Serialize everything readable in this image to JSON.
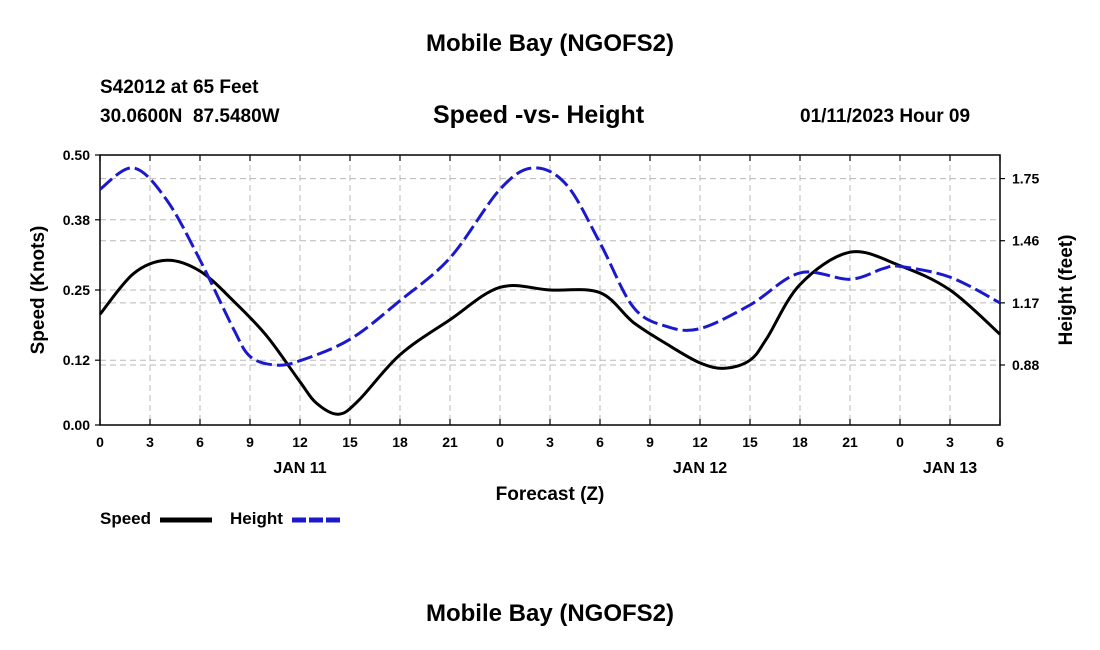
{
  "page": {
    "title": "Mobile Bay (NGOFS2)",
    "bottom_title": "Mobile Bay (NGOFS2)",
    "station": "S42012 at 65 Feet",
    "coords": "30.0600N  87.5480W",
    "datetime": "01/11/2023 Hour 09"
  },
  "chart_data": {
    "type": "line",
    "title": "Speed -vs- Height",
    "xlabel": "Forecast (Z)",
    "ylabel_left": "Speed (Knots)",
    "ylabel_right": "Height (feet)",
    "x_hours": [
      0,
      3,
      6,
      9,
      12,
      15,
      18,
      21,
      24,
      27,
      30,
      33,
      36,
      39,
      42,
      45,
      48,
      51,
      54
    ],
    "x_tick_labels": [
      "0",
      "3",
      "6",
      "9",
      "12",
      "15",
      "18",
      "21",
      "0",
      "3",
      "6",
      "9",
      "12",
      "15",
      "18",
      "21",
      "0",
      "3",
      "6"
    ],
    "date_labels": [
      {
        "label": "JAN 11",
        "hour": 12
      },
      {
        "label": "JAN 12",
        "hour": 36
      },
      {
        "label": "JAN 13",
        "hour": 51
      }
    ],
    "xlim": [
      0,
      54
    ],
    "ylim_left": [
      0,
      0.5
    ],
    "yticks_left": [
      "0.00",
      "0.12",
      "0.25",
      "0.38",
      "0.50"
    ],
    "ylim_right": [
      0.6,
      1.86
    ],
    "yticks_right": [
      0.88,
      1.17,
      1.46,
      1.75
    ],
    "yticks_right_labels": [
      "0.88",
      "1.17",
      "1.46",
      "1.75"
    ],
    "grid": true,
    "legend_placement": "bottom-left",
    "series": [
      {
        "name": "Speed",
        "color": "#000000",
        "style": "solid",
        "axis": "left",
        "hours": [
          0,
          2,
          4,
          6,
          8,
          10,
          12,
          13,
          14.3,
          15.5,
          18,
          21,
          24,
          27,
          30,
          32,
          34,
          36,
          37.5,
          39,
          40,
          42,
          45,
          48,
          51,
          54
        ],
        "values": [
          0.205,
          0.28,
          0.305,
          0.285,
          0.23,
          0.165,
          0.08,
          0.04,
          0.02,
          0.045,
          0.13,
          0.195,
          0.255,
          0.25,
          0.245,
          0.19,
          0.15,
          0.115,
          0.105,
          0.12,
          0.16,
          0.26,
          0.32,
          0.295,
          0.25,
          0.168
        ]
      },
      {
        "name": "Height",
        "color": "#1a1acc",
        "style": "dashed",
        "axis": "right",
        "hours": [
          0,
          2,
          4,
          6,
          8,
          9,
          10.5,
          12,
          15,
          18,
          21,
          24,
          26,
          28,
          30,
          32,
          34,
          36,
          39,
          42,
          45,
          47,
          48,
          51,
          54
        ],
        "values": [
          1.7,
          1.8,
          1.65,
          1.37,
          1.05,
          0.92,
          0.88,
          0.9,
          1.0,
          1.18,
          1.38,
          1.7,
          1.8,
          1.72,
          1.45,
          1.15,
          1.06,
          1.05,
          1.16,
          1.31,
          1.28,
          1.33,
          1.34,
          1.29,
          1.17
        ]
      }
    ]
  }
}
